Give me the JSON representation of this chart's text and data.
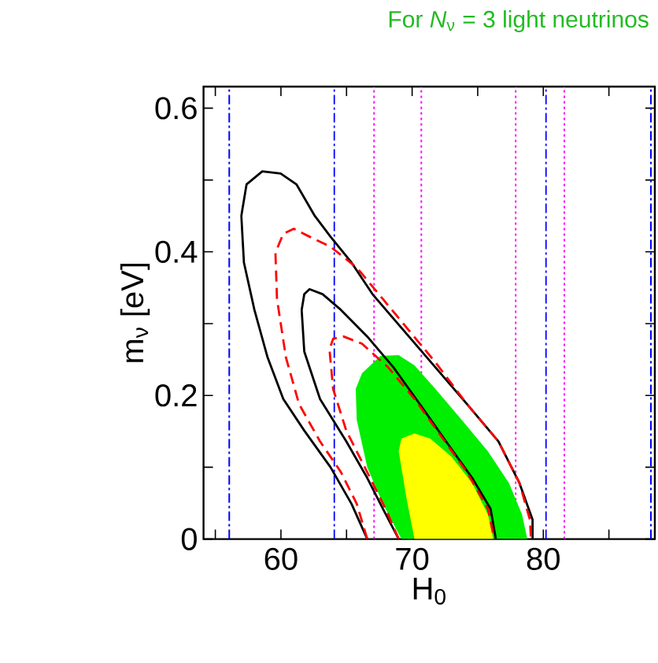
{
  "chart_data": {
    "type": "line",
    "title": "For *N*$_{ν}$ = 3 light neutrinos",
    "xlabel": "H$_{0}$",
    "ylabel": "m$_{ν}$ [eV]",
    "xlim": [
      54.1,
      88.5
    ],
    "ylim": [
      0,
      0.63
    ],
    "xticks": [
      {
        "value": 55,
        "label": null
      },
      60,
      {
        "value": 65,
        "label": null
      },
      70,
      {
        "value": 75,
        "label": null
      },
      80,
      {
        "value": 85,
        "label": null
      }
    ],
    "yticks": [
      0,
      {
        "value": 0.1,
        "label": null
      },
      0.2,
      {
        "value": 0.3,
        "label": null
      },
      0.4,
      {
        "value": 0.5,
        "label": null
      },
      0.6
    ],
    "series": [
      {
        "type": "area",
        "color": "#00ee00",
        "x": [
          69.18,
          67.78,
          66.58,
          65.78,
          65.7,
          66.18,
          67.58,
          68.98,
          70.18,
          71.78,
          73.78,
          75.78,
          77.38,
          78.38,
          78.78
        ],
        "values": [
          0,
          0.049,
          0.1,
          0.166,
          0.209,
          0.231,
          0.255,
          0.256,
          0.242,
          0.209,
          0.166,
          0.122,
          0.078,
          0.034,
          0
        ]
      },
      {
        "type": "area",
        "color": "#ffff00",
        "x": [
          70.18,
          69.58,
          68.98,
          69.18,
          70.18,
          71.38,
          72.98,
          74.58,
          75.78,
          76.18
        ],
        "values": [
          0,
          0.056,
          0.122,
          0.14,
          0.147,
          0.14,
          0.115,
          0.078,
          0.034,
          0
        ]
      },
      {
        "color": "#000000",
        "line_style": "solid",
        "x": [
          66.58,
          65.38,
          63.78,
          61.78,
          60.18,
          58.98,
          57.98,
          57.18,
          56.98,
          57.38,
          58.58,
          59.98,
          61.18,
          62.58,
          63.78,
          65.38,
          66.98,
          69.38,
          71.78,
          74.18,
          76.58,
          78.18,
          79.18,
          79.18
        ],
        "values": [
          0,
          0.049,
          0.1,
          0.151,
          0.195,
          0.253,
          0.319,
          0.385,
          0.45,
          0.494,
          0.512,
          0.509,
          0.494,
          0.45,
          0.421,
          0.385,
          0.341,
          0.29,
          0.239,
          0.188,
          0.136,
          0.078,
          0.027,
          0
        ]
      },
      {
        "color": "#000000",
        "line_style": "solid",
        "x": [
          68.98,
          67.78,
          66.58,
          64.98,
          62.98,
          61.78,
          61.58,
          61.78,
          62.18,
          63.18,
          64.58,
          66.58,
          68.58,
          70.58,
          72.58,
          74.58,
          75.98,
          76.38
        ],
        "values": [
          0,
          0.042,
          0.085,
          0.136,
          0.195,
          0.261,
          0.319,
          0.341,
          0.348,
          0.341,
          0.319,
          0.282,
          0.239,
          0.188,
          0.136,
          0.085,
          0.042,
          0
        ]
      },
      {
        "color": "#ff0000",
        "line_style": "dashed",
        "x": [
          66.58,
          65.78,
          64.58,
          62.98,
          61.38,
          60.38,
          59.7,
          59.58,
          60.18,
          60.98,
          62.18,
          63.78,
          65.78,
          67.78,
          69.78,
          71.78,
          74.18,
          76.58,
          78.18,
          78.98,
          79.06
        ],
        "values": [
          0,
          0.049,
          0.093,
          0.136,
          0.188,
          0.253,
          0.334,
          0.399,
          0.425,
          0.432,
          0.421,
          0.407,
          0.378,
          0.334,
          0.29,
          0.246,
          0.188,
          0.136,
          0.078,
          0.027,
          0
        ]
      },
      {
        "color": "#ff0000",
        "line_style": "dashed",
        "x": [
          68.98,
          67.98,
          66.58,
          64.98,
          63.98,
          63.7,
          63.98,
          64.78,
          66.18,
          68.18,
          70.18,
          72.18,
          74.18,
          75.78,
          76.26
        ],
        "values": [
          0,
          0.042,
          0.093,
          0.151,
          0.209,
          0.264,
          0.279,
          0.282,
          0.272,
          0.239,
          0.195,
          0.144,
          0.093,
          0.042,
          0
        ]
      }
    ],
    "ref_lines": [
      {
        "axis": "x",
        "value": 56.06,
        "color": "#0000ff",
        "line_style": "dashdot"
      },
      {
        "axis": "x",
        "value": 64.06,
        "color": "#0000ff",
        "line_style": "dashdot"
      },
      {
        "axis": "x",
        "value": 67.1,
        "color": "#ff00ff",
        "line_style": "dotted"
      },
      {
        "axis": "x",
        "value": 70.7,
        "color": "#ff00ff",
        "line_style": "dotted"
      },
      {
        "axis": "x",
        "value": 77.9,
        "color": "#ff00ff",
        "line_style": "dotted"
      },
      {
        "axis": "x",
        "value": 80.2,
        "color": "#0000ff",
        "line_style": "dashdot"
      },
      {
        "axis": "x",
        "value": 81.6,
        "color": "#ff00ff",
        "line_style": "dotted"
      },
      {
        "axis": "x",
        "value": 88.2,
        "color": "#0000ff",
        "line_style": "dashdot"
      }
    ]
  }
}
